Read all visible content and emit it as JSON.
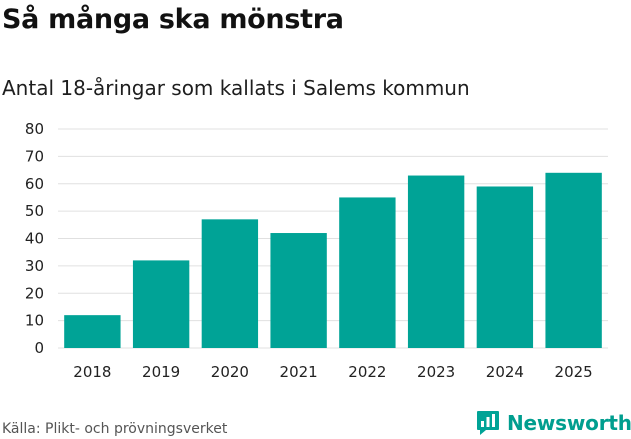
{
  "header": {
    "title": "Så många ska mönstra",
    "subtitle": "Antal 18-åringar som kallats i Salems kommun"
  },
  "footer": {
    "source": "Källa: Plikt- och prövningsverket",
    "brand": "Newsworthy"
  },
  "colors": {
    "bar": "#00a396",
    "brand": "#009e8f",
    "grid": "#e0e0e0"
  },
  "chart_data": {
    "type": "bar",
    "categories": [
      "2018",
      "2019",
      "2020",
      "2021",
      "2022",
      "2023",
      "2024",
      "2025"
    ],
    "values": [
      12,
      32,
      47,
      42,
      55,
      63,
      59,
      64
    ],
    "title": "Så många ska mönstra",
    "subtitle": "Antal 18-åringar som kallats i Salems kommun",
    "xlabel": "",
    "ylabel": "",
    "ylim": [
      0,
      80
    ],
    "yticks": [
      0,
      10,
      20,
      30,
      40,
      50,
      60,
      70,
      80
    ],
    "grid": true,
    "legend": "none"
  }
}
